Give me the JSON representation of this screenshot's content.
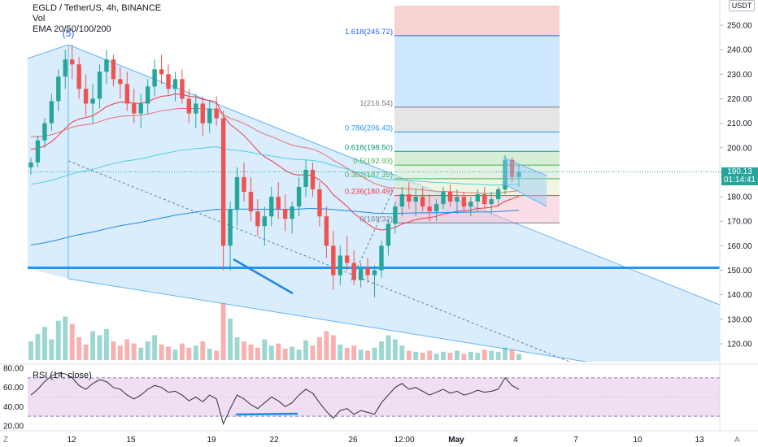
{
  "header": {
    "title": "EGLD / TetherUS, 4h, BINANCE",
    "vol_label": "Vol",
    "ema_label": "EMA 20/50/100/200",
    "wave_label": "(5)"
  },
  "price_axis": {
    "currency": "USDT",
    "ticks": [
      "250.00",
      "240.00",
      "230.00",
      "220.00",
      "210.00",
      "200.00",
      "190.00",
      "180.00",
      "170.00",
      "160.00",
      "150.00",
      "140.00",
      "130.00",
      "120.00"
    ],
    "current_price": "190.13",
    "countdown": "01:14:41"
  },
  "time_axis": {
    "ticks": [
      "12",
      "15",
      "19",
      "22",
      "26",
      "12:00",
      "May",
      "4",
      "7",
      "10",
      "13"
    ]
  },
  "rsi": {
    "label": "RSI (14, close)",
    "ticks": [
      "80.00",
      "60.00",
      "40.00",
      "20.00"
    ]
  },
  "corner": {
    "left": "Z",
    "right": "A"
  },
  "fib_levels": [
    {
      "label": "1.618(245.72)",
      "value": 245.72,
      "color": "#2962ff"
    },
    {
      "label": "1(216.54)",
      "value": 216.54,
      "color": "#787b86"
    },
    {
      "label": "0.786(206.43)",
      "value": 206.43,
      "color": "#2196f3"
    },
    {
      "label": "0.618(198.50)",
      "value": 198.5,
      "color": "#089981"
    },
    {
      "label": "0.5(192.93)",
      "value": 192.93,
      "color": "#4caf50"
    },
    {
      "label": "0.382(187.35)",
      "value": 187.35,
      "color": "#4caf50"
    },
    {
      "label": "0.236(180.49)",
      "value": 180.49,
      "color": "#f23645"
    },
    {
      "label": "0(169.32)",
      "value": 169.32,
      "color": "#787b86"
    }
  ],
  "chart_data": {
    "type": "candlestick",
    "title": "EGLD / TetherUS, 4h, BINANCE",
    "xlabel": "",
    "ylabel": "",
    "ylim": [
      110,
      258
    ],
    "x_tick_labels": [
      "12",
      "15",
      "19",
      "22",
      "26",
      "12:00",
      "May",
      "4",
      "7",
      "10",
      "13"
    ],
    "support_level": 151,
    "current_price": 190.13,
    "colors": {
      "up": "#26a69a",
      "down": "#ef5350",
      "ema20": "#f23645",
      "ema50": "#e57373",
      "ema100": "#4dd0e1",
      "ema200": "#1e88e5",
      "support": "#2196f3"
    },
    "candles": [
      [
        192,
        196,
        189,
        194
      ],
      [
        194,
        205,
        192,
        203
      ],
      [
        203,
        212,
        200,
        210
      ],
      [
        210,
        222,
        207,
        219
      ],
      [
        219,
        232,
        215,
        229
      ],
      [
        229,
        240,
        224,
        236
      ],
      [
        236,
        242,
        228,
        234
      ],
      [
        234,
        237,
        220,
        224
      ],
      [
        224,
        230,
        213,
        218
      ],
      [
        218,
        226,
        210,
        220
      ],
      [
        220,
        234,
        216,
        231
      ],
      [
        231,
        240,
        226,
        236
      ],
      [
        236,
        238,
        225,
        228
      ],
      [
        228,
        233,
        220,
        226
      ],
      [
        226,
        231,
        215,
        218
      ],
      [
        218,
        224,
        210,
        214
      ],
      [
        214,
        222,
        208,
        218
      ],
      [
        218,
        228,
        214,
        225
      ],
      [
        225,
        236,
        221,
        232
      ],
      [
        232,
        238,
        226,
        230
      ],
      [
        230,
        234,
        222,
        224
      ],
      [
        224,
        231,
        219,
        228
      ],
      [
        228,
        232,
        218,
        220
      ],
      [
        220,
        224,
        210,
        214
      ],
      [
        214,
        222,
        208,
        218
      ],
      [
        218,
        221,
        205,
        210
      ],
      [
        210,
        219,
        206,
        216
      ],
      [
        216,
        221,
        209,
        212
      ],
      [
        212,
        215,
        150,
        160
      ],
      [
        160,
        178,
        150,
        175
      ],
      [
        175,
        192,
        168,
        188
      ],
      [
        188,
        194,
        178,
        182
      ],
      [
        182,
        188,
        170,
        174
      ],
      [
        174,
        179,
        164,
        168
      ],
      [
        168,
        176,
        160,
        172
      ],
      [
        172,
        184,
        168,
        180
      ],
      [
        180,
        186,
        171,
        175
      ],
      [
        175,
        181,
        166,
        171
      ],
      [
        171,
        178,
        165,
        176
      ],
      [
        176,
        188,
        172,
        184
      ],
      [
        184,
        195,
        180,
        191
      ],
      [
        191,
        194,
        180,
        183
      ],
      [
        183,
        186,
        168,
        172
      ],
      [
        172,
        176,
        155,
        160
      ],
      [
        160,
        166,
        142,
        148
      ],
      [
        148,
        160,
        144,
        156
      ],
      [
        156,
        164,
        150,
        153
      ],
      [
        153,
        158,
        144,
        146
      ],
      [
        146,
        153,
        143,
        151
      ],
      [
        151,
        155,
        145,
        148
      ],
      [
        148,
        152,
        139,
        150
      ],
      [
        150,
        162,
        147,
        160
      ],
      [
        160,
        171,
        156,
        169
      ],
      [
        169,
        178,
        165,
        176
      ],
      [
        176,
        184,
        172,
        181
      ],
      [
        181,
        186,
        175,
        178
      ],
      [
        178,
        183,
        172,
        180
      ],
      [
        180,
        184,
        174,
        176
      ],
      [
        176,
        181,
        170,
        174
      ],
      [
        174,
        179,
        170,
        177
      ],
      [
        177,
        184,
        175,
        182
      ],
      [
        182,
        185,
        176,
        178
      ],
      [
        178,
        183,
        173,
        180
      ],
      [
        180,
        182,
        174,
        176
      ],
      [
        176,
        180,
        172,
        178
      ],
      [
        178,
        183,
        174,
        181
      ],
      [
        181,
        184,
        175,
        177
      ],
      [
        177,
        182,
        173,
        179
      ],
      [
        179,
        184,
        176,
        183
      ],
      [
        183,
        197,
        181,
        195
      ],
      [
        195,
        196,
        186,
        188
      ],
      [
        188,
        193,
        184,
        190
      ]
    ],
    "volume": [
      18,
      25,
      32,
      20,
      38,
      42,
      35,
      22,
      15,
      28,
      24,
      30,
      18,
      14,
      20,
      16,
      12,
      18,
      24,
      15,
      13,
      10,
      16,
      12,
      14,
      18,
      11,
      9,
      55,
      40,
      22,
      18,
      15,
      12,
      20,
      14,
      16,
      11,
      13,
      10,
      19,
      14,
      22,
      28,
      24,
      15,
      12,
      14,
      10,
      9,
      12,
      18,
      24,
      20,
      14,
      9,
      8,
      7,
      9,
      6,
      8,
      7,
      9,
      6,
      8,
      7,
      10,
      9,
      8,
      12,
      10,
      6
    ],
    "rsi": [
      52,
      58,
      66,
      72,
      75,
      74,
      70,
      62,
      58,
      64,
      68,
      66,
      60,
      58,
      52,
      48,
      52,
      58,
      62,
      60,
      55,
      56,
      52,
      46,
      50,
      45,
      52,
      48,
      22,
      38,
      52,
      48,
      42,
      38,
      44,
      50,
      46,
      40,
      44,
      52,
      58,
      54,
      44,
      35,
      28,
      36,
      38,
      32,
      36,
      34,
      32,
      44,
      52,
      60,
      64,
      58,
      60,
      56,
      52,
      55,
      58,
      54,
      56,
      52,
      54,
      57,
      55,
      56,
      58,
      70,
      62,
      58
    ]
  }
}
